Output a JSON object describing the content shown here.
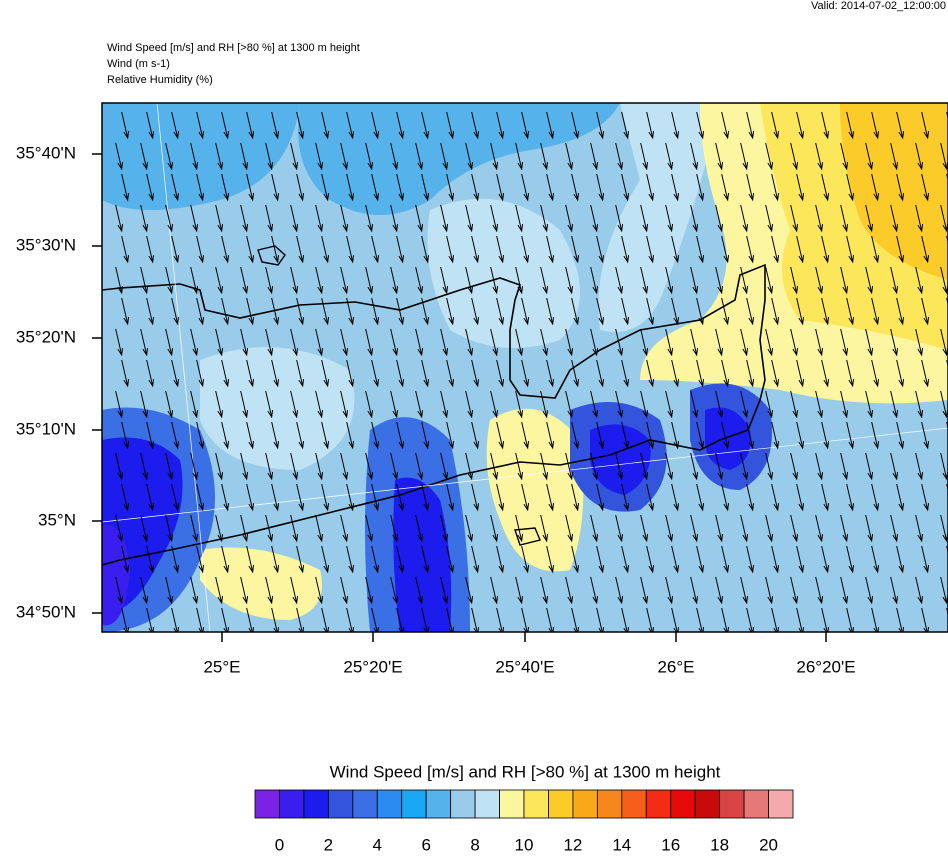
{
  "header": {
    "valid": "Valid: 2014-07-02_12:00:00",
    "lines": [
      "Wind Speed [m/s] and RH [>80 %] at 1300 m height",
      "Wind   (m s-1)",
      "Relative Humidity   (%)"
    ]
  },
  "axes": {
    "x_labels": [
      "25°E",
      "25°20'E",
      "25°40'E",
      "26°E",
      "26°20'E"
    ],
    "y_labels": [
      "35°40'N",
      "35°30'N",
      "35°20'N",
      "35°10'N",
      "35°N",
      "34°50'N"
    ]
  },
  "colorbar": {
    "title": "Wind Speed [m/s] and RH [>80 %] at 1300 m height",
    "labels": [
      0,
      2,
      4,
      6,
      8,
      10,
      12,
      14,
      16,
      18,
      20
    ],
    "colors": [
      "#7a22e6",
      "#3a1ef0",
      "#1c1cee",
      "#3355dd",
      "#3a6fe6",
      "#2a8cf0",
      "#1aa8f5",
      "#55b2ea",
      "#99cbea",
      "#c0e2f5",
      "#fdf6a0",
      "#fce65a",
      "#fbcb2a",
      "#f9a818",
      "#f8861a",
      "#f65e1a",
      "#f32a14",
      "#e60a0a",
      "#c80a0a",
      "#d94545",
      "#e77878",
      "#f4aaaa"
    ]
  }
}
